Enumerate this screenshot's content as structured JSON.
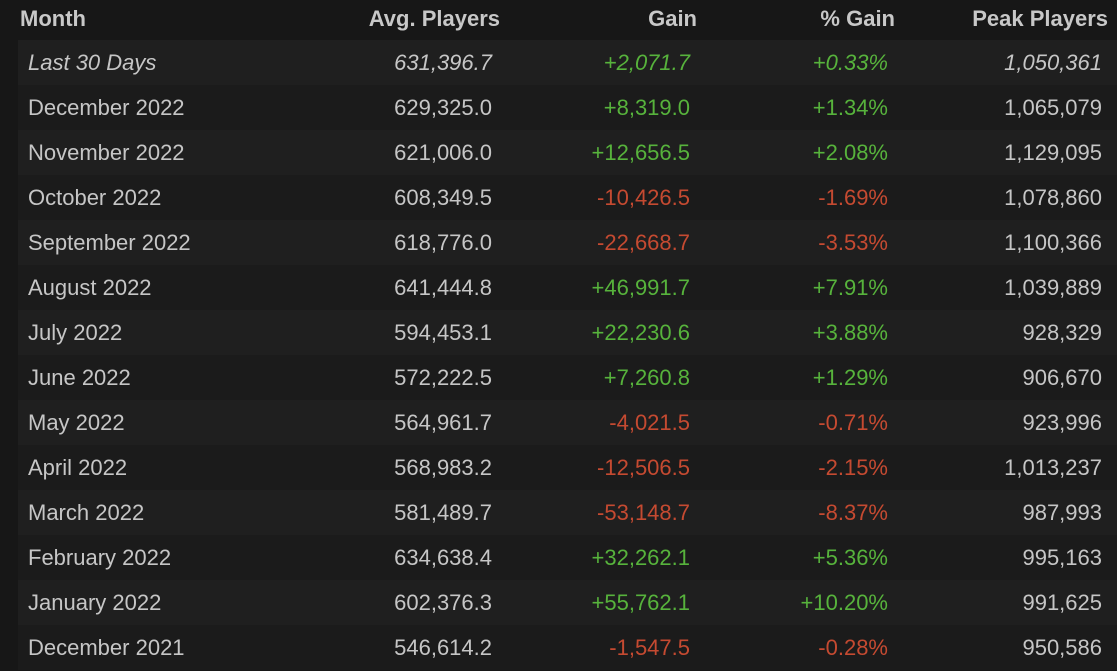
{
  "table": {
    "header": [
      "Month",
      "Avg. Players",
      "Gain",
      "% Gain",
      "Peak Players"
    ],
    "rows": [
      [
        "Last 30 Days",
        "631,396.7",
        "+2,071.7",
        "+0.33%",
        "1,050,361"
      ],
      [
        "December 2022",
        "629,325.0",
        "+8,319.0",
        "+1.34%",
        "1,065,079"
      ],
      [
        "November 2022",
        "621,006.0",
        "+12,656.5",
        "+2.08%",
        "1,129,095"
      ],
      [
        "October 2022",
        "608,349.5",
        "-10,426.5",
        "-1.69%",
        "1,078,860"
      ],
      [
        "September 2022",
        "618,776.0",
        "-22,668.7",
        "-3.53%",
        "1,100,366"
      ],
      [
        "August 2022",
        "641,444.8",
        "+46,991.7",
        "+7.91%",
        "1,039,889"
      ],
      [
        "July 2022",
        "594,453.1",
        "+22,230.6",
        "+3.88%",
        "928,329"
      ],
      [
        "June 2022",
        "572,222.5",
        "+7,260.8",
        "+1.29%",
        "906,670"
      ],
      [
        "May 2022",
        "564,961.7",
        "-4,021.5",
        "-0.71%",
        "923,996"
      ],
      [
        "April 2022",
        "568,983.2",
        "-12,506.5",
        "-2.15%",
        "1,013,237"
      ],
      [
        "March 2022",
        "581,489.7",
        "-53,148.7",
        "-8.37%",
        "987,993"
      ],
      [
        "February 2022",
        "634,638.4",
        "+32,262.1",
        "+5.36%",
        "995,163"
      ],
      [
        "January 2022",
        "602,376.3",
        "+55,762.1",
        "+10.20%",
        "991,625"
      ],
      [
        "December 2021",
        "546,614.2",
        "-1,547.5",
        "-0.28%",
        "950,586"
      ]
    ]
  }
}
